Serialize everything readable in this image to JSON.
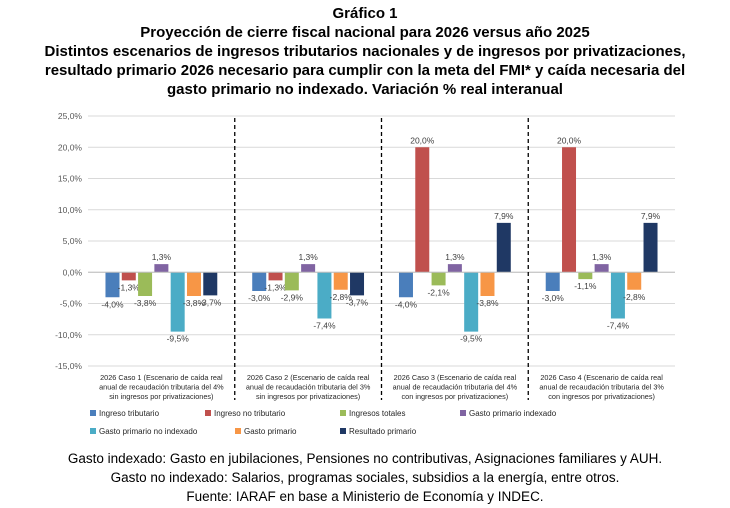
{
  "heading": {
    "figure_label": "Gráfico 1",
    "line1": "Proyección de cierre fiscal nacional para 2026 versus año 2025",
    "line2": "Distintos escenarios de ingresos tributarios nacionales y de ingresos por privatizaciones,",
    "line3": "resultado primario 2026 necesario para cumplir con la meta del FMI* y caída necesaria del",
    "line4": "gasto primario no indexado. Variación % real interanual"
  },
  "chart_data": {
    "type": "bar",
    "ylim": [
      -15,
      25
    ],
    "yticks": [
      -15,
      -10,
      -5,
      0,
      5,
      10,
      15,
      20,
      25
    ],
    "ytick_labels": [
      "-15,0%",
      "-10,0%",
      "-5,0%",
      "0,0%",
      "5,0%",
      "10,0%",
      "15,0%",
      "20,0%",
      "25,0%"
    ],
    "grid": true,
    "legend_position": "bottom",
    "categories": [
      [
        "2026 Caso 1 (Escenario de caída real",
        "anual de recaudación tributaria del 4%",
        "sin ingresos por privatizaciones)"
      ],
      [
        "2026 Caso 2 (Escenario de caída real",
        "anual de recaudación tributaria del 3%",
        "sin ingresos por privatizaciones)"
      ],
      [
        "2026 Caso 3 (Escenario de caída real",
        "anual de recaudación tributaria del 4%",
        "con ingresos por privatizaciones)"
      ],
      [
        "2026 Caso 4 (Escenario de caída real",
        "anual de recaudación tributaria del 3%",
        "con ingresos por privatizaciones)"
      ]
    ],
    "series": [
      {
        "name": "Ingreso tributario",
        "color": "#4a7ebb",
        "values": [
          -4.0,
          -3.0,
          -4.0,
          -3.0
        ],
        "labels": [
          "-4,0%",
          "-3,0%",
          "-4,0%",
          "-3,0%"
        ]
      },
      {
        "name": "Ingreso no tributario",
        "color": "#c0504d",
        "values": [
          -1.3,
          -1.3,
          20.0,
          20.0
        ],
        "labels": [
          "-1,3%",
          "-1,3%",
          "20,0%",
          "20,0%"
        ]
      },
      {
        "name": "Ingresos totales",
        "color": "#9bbb59",
        "values": [
          -3.8,
          -2.9,
          -2.1,
          -1.1
        ],
        "labels": [
          "-3,8%",
          "-2,9%",
          "-2,1%",
          "-1,1%"
        ]
      },
      {
        "name": "Gasto primario indexado",
        "color": "#8064a2",
        "values": [
          1.3,
          1.3,
          1.3,
          1.3
        ],
        "labels": [
          "1,3%",
          "1,3%",
          "1,3%",
          "1,3%"
        ]
      },
      {
        "name": "Gasto primario no indexado",
        "color": "#4bacc6",
        "values": [
          -9.5,
          -7.4,
          -9.5,
          -7.4
        ],
        "labels": [
          "-9,5%",
          "-7,4%",
          "-9,5%",
          "-7,4%"
        ]
      },
      {
        "name": "Gasto primario",
        "color": "#f79646",
        "values": [
          -3.8,
          -2.8,
          -3.8,
          -2.8
        ],
        "labels": [
          "-3,8%",
          "-2,8%",
          "-3,8%",
          "-2,8%"
        ]
      },
      {
        "name": "Resultado primario",
        "color": "#1f3864",
        "values": [
          -3.7,
          -3.7,
          7.9,
          7.9
        ],
        "labels": [
          "-3,7%",
          "-3,7%",
          "7,9%",
          "7,9%"
        ]
      }
    ]
  },
  "footer": {
    "line1": "Gasto indexado: Gasto en jubilaciones, Pensiones no contributivas, Asignaciones familiares y AUH.",
    "line2": "Gasto no indexado: Salarios, programas sociales, subsidios a la energía, entre otros.",
    "line3": "Fuente: IARAF en base a Ministerio de Economía y INDEC."
  }
}
